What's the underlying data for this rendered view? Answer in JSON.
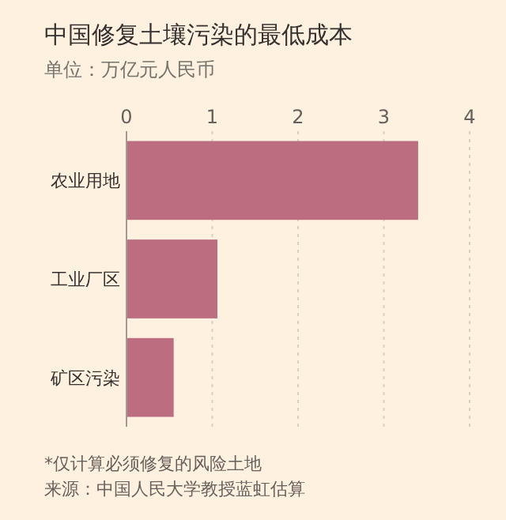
{
  "chart_data": {
    "type": "bar",
    "orientation": "horizontal",
    "title": "中国修复土壤污染的最低成本",
    "subtitle": "单位：万亿元人民币",
    "categories": [
      "农业用地",
      "工业厂区",
      "矿区污染"
    ],
    "values": [
      3.4,
      1.06,
      0.55
    ],
    "color": "#bc6e80",
    "xlim": [
      0,
      4
    ],
    "xticks": [
      0,
      1,
      2,
      3,
      4
    ],
    "grid": "x",
    "annotations": [
      "*仅计算必须修复的风险土地",
      "来源：中国人民大学教授蓝虹估算"
    ]
  }
}
